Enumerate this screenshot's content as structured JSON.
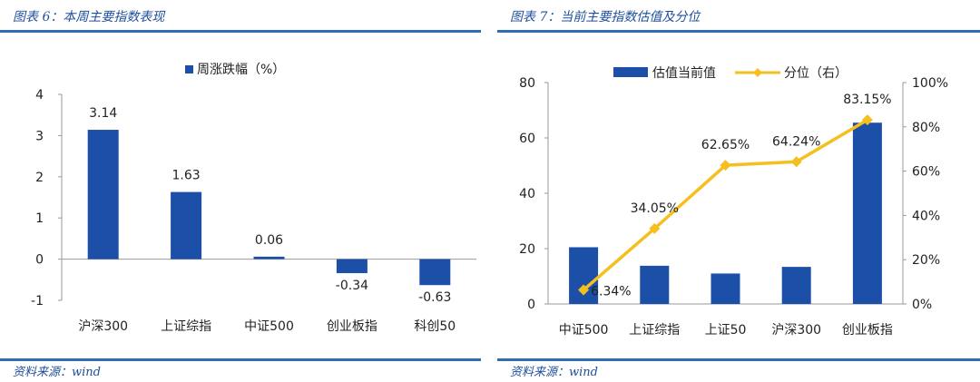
{
  "left_panel": {
    "title": "图表 6：本周主要指数表现",
    "source": "资料来源：wind"
  },
  "right_panel": {
    "title": "图表 7：当前主要指数估值及分位",
    "source": "资料来源：wind"
  },
  "colors": {
    "bar": "#1c4fa8",
    "line": "#f5c01e",
    "rule": "#2f6db5",
    "title_text": "#1f4e9c"
  },
  "chart_data": [
    {
      "type": "bar",
      "categories": [
        "沪深300",
        "上证综指",
        "中证500",
        "创业板指",
        "科创50"
      ],
      "series": [
        {
          "name": "周涨跌幅（%）",
          "values": [
            3.14,
            1.63,
            0.06,
            -0.34,
            -0.63
          ]
        }
      ],
      "data_labels": [
        "3.14",
        "1.63",
        "0.06",
        "-0.34",
        "-0.63"
      ],
      "ylim": [
        -1,
        4
      ],
      "yticks": [
        "-1",
        "0",
        "1",
        "2",
        "3",
        "4"
      ],
      "legend_position": "top",
      "grid": false
    },
    {
      "type": "bar+line",
      "categories": [
        "中证500",
        "上证综指",
        "上证50",
        "沪深300",
        "创业板指"
      ],
      "series": [
        {
          "name": "估值当前值",
          "type": "bar",
          "axis": "left",
          "values": [
            20.5,
            13.8,
            11.0,
            13.4,
            65.5
          ]
        },
        {
          "name": "分位（右）",
          "type": "line",
          "axis": "right",
          "values": [
            6.34,
            34.05,
            62.65,
            64.24,
            83.15
          ]
        }
      ],
      "line_labels": [
        "6.34%",
        "34.05%",
        "62.65%",
        "64.24%",
        "83.15%"
      ],
      "ylim_left": [
        0,
        80
      ],
      "yticks_left": [
        "0",
        "20",
        "40",
        "60",
        "80"
      ],
      "ylim_right": [
        0,
        100
      ],
      "yticks_right": [
        "0%",
        "20%",
        "40%",
        "60%",
        "80%",
        "100%"
      ],
      "legend_position": "top",
      "grid": false
    }
  ]
}
